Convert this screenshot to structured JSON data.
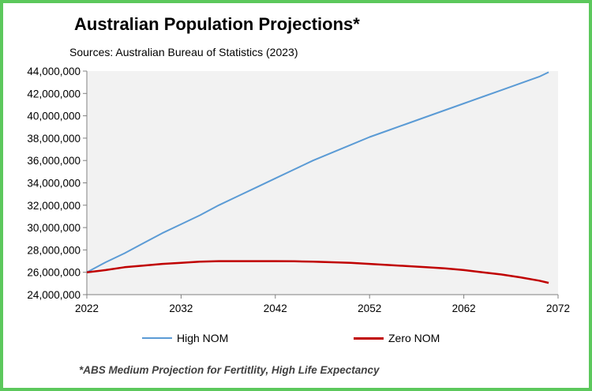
{
  "chart_data": {
    "type": "line",
    "title": "Australian Population Projections*",
    "subtitle": "Sources: Australian Bureau of Statistics (2023)",
    "footnote": "*ABS Medium Projection for Fertitlity, High Life Expectancy",
    "xlabel": "",
    "ylabel": "",
    "xlim": [
      2022,
      2072
    ],
    "ylim": [
      24000000,
      44000000
    ],
    "x_ticks": [
      2022,
      2032,
      2042,
      2052,
      2062,
      2072
    ],
    "y_ticks": [
      24000000,
      26000000,
      28000000,
      30000000,
      32000000,
      34000000,
      36000000,
      38000000,
      40000000,
      42000000,
      44000000
    ],
    "y_tick_labels": [
      "24,000,000",
      "26,000,000",
      "28,000,000",
      "30,000,000",
      "32,000,000",
      "34,000,000",
      "36,000,000",
      "38,000,000",
      "40,000,000",
      "42,000,000",
      "44,000,000"
    ],
    "grid": false,
    "legend_position": "bottom",
    "series": [
      {
        "name": "High NOM",
        "color": "#5b9bd5",
        "x": [
          2022,
          2024,
          2026,
          2028,
          2030,
          2032,
          2034,
          2036,
          2038,
          2040,
          2042,
          2044,
          2046,
          2048,
          2050,
          2052,
          2054,
          2056,
          2058,
          2060,
          2062,
          2064,
          2066,
          2068,
          2070,
          2071
        ],
        "values": [
          26000000,
          26900000,
          27700000,
          28600000,
          29500000,
          30300000,
          31100000,
          32000000,
          32800000,
          33600000,
          34400000,
          35200000,
          36000000,
          36700000,
          37400000,
          38100000,
          38700000,
          39300000,
          39900000,
          40500000,
          41100000,
          41700000,
          42300000,
          42900000,
          43500000,
          43900000
        ]
      },
      {
        "name": "Zero NOM",
        "color": "#c00000",
        "x": [
          2022,
          2024,
          2026,
          2028,
          2030,
          2032,
          2034,
          2036,
          2038,
          2040,
          2042,
          2044,
          2046,
          2048,
          2050,
          2052,
          2054,
          2056,
          2058,
          2060,
          2062,
          2064,
          2066,
          2068,
          2070,
          2071
        ],
        "values": [
          26000000,
          26200000,
          26450000,
          26600000,
          26750000,
          26850000,
          26950000,
          27000000,
          27000000,
          27000000,
          27000000,
          26980000,
          26950000,
          26900000,
          26850000,
          26750000,
          26650000,
          26550000,
          26450000,
          26350000,
          26200000,
          26000000,
          25800000,
          25550000,
          25250000,
          25050000
        ]
      }
    ]
  }
}
